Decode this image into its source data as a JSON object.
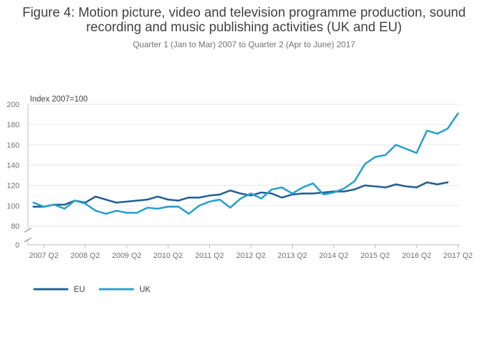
{
  "chart_data": {
    "type": "line",
    "title": "Figure 4: Motion picture, video and television programme production, sound recording and music publishing activities (UK and EU)",
    "subtitle": "Quarter 1 (Jan to Mar) 2007 to Quarter 2 (Apr to June) 2017",
    "ylabel": "Index 2007=100",
    "ylim": [
      0,
      200
    ],
    "axis_break": [
      0,
      80
    ],
    "yticks": [
      "0",
      "80",
      "100",
      "120",
      "140",
      "160",
      "180",
      "200"
    ],
    "yticks_values": [
      0,
      80,
      100,
      120,
      140,
      160,
      180,
      200
    ],
    "xticks": [
      "2007 Q2",
      "2008 Q2",
      "2009 Q2",
      "2010 Q2",
      "2011 Q2",
      "2012 Q2",
      "2013 Q2",
      "2014 Q2",
      "2015 Q2",
      "2016 Q2",
      "2017 Q2"
    ],
    "x": [
      "2007 Q1",
      "2007 Q2",
      "2007 Q3",
      "2007 Q4",
      "2008 Q1",
      "2008 Q2",
      "2008 Q3",
      "2008 Q4",
      "2009 Q1",
      "2009 Q2",
      "2009 Q3",
      "2009 Q4",
      "2010 Q1",
      "2010 Q2",
      "2010 Q3",
      "2010 Q4",
      "2011 Q1",
      "2011 Q2",
      "2011 Q3",
      "2011 Q4",
      "2012 Q1",
      "2012 Q2",
      "2012 Q3",
      "2012 Q4",
      "2013 Q1",
      "2013 Q2",
      "2013 Q3",
      "2013 Q4",
      "2014 Q1",
      "2014 Q2",
      "2014 Q3",
      "2014 Q4",
      "2015 Q1",
      "2015 Q2",
      "2015 Q3",
      "2015 Q4",
      "2016 Q1",
      "2016 Q2",
      "2016 Q3",
      "2016 Q4",
      "2017 Q1",
      "2017 Q2"
    ],
    "series": [
      {
        "name": "EU",
        "color": "#206095",
        "values": [
          99,
          99,
          101,
          101,
          105,
          103,
          109,
          106,
          103,
          104,
          105,
          106,
          109,
          106,
          105,
          108,
          108,
          110,
          111,
          115,
          112,
          110,
          113,
          112,
          108,
          111,
          112,
          112,
          113,
          114,
          114,
          116,
          120,
          119,
          118,
          121,
          119,
          118,
          123,
          121,
          123,
          null
        ]
      },
      {
        "name": "UK",
        "color": "#27a0cc",
        "values": [
          103,
          99,
          101,
          97,
          105,
          102,
          95,
          92,
          95,
          93,
          93,
          98,
          97,
          99,
          99,
          92,
          100,
          104,
          106,
          98,
          107,
          112,
          107,
          116,
          118,
          112,
          118,
          122,
          111,
          113,
          117,
          124,
          141,
          148,
          150,
          160,
          156,
          152,
          174,
          171,
          176,
          191
        ]
      }
    ],
    "legend": {
      "position": "bottom-left",
      "items": [
        "EU",
        "UK"
      ]
    },
    "grid": true
  }
}
